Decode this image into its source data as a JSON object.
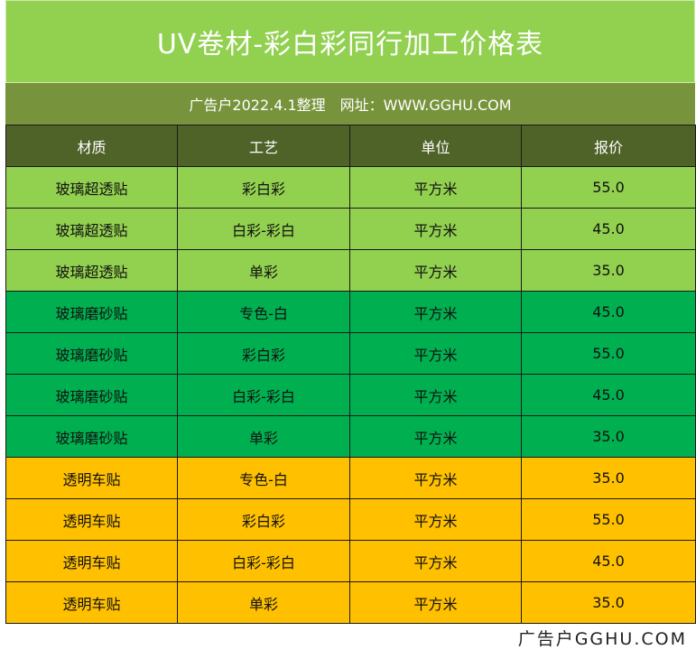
{
  "title": "UV卷材-彩白彩同行加工价格表",
  "subtitle": {
    "source": "广告户2022.4.1整理",
    "website": "网址：WWW.GGHU.COM"
  },
  "headers": [
    "材质",
    "工艺",
    "单位",
    "报价"
  ],
  "rows": [
    {
      "group": "g1",
      "material": "玻璃超透贴",
      "process": "彩白彩",
      "unit": "平方米",
      "price": "55.0"
    },
    {
      "group": "g1",
      "material": "玻璃超透贴",
      "process": "白彩-彩白",
      "unit": "平方米",
      "price": "45.0"
    },
    {
      "group": "g1",
      "material": "玻璃超透贴",
      "process": "单彩",
      "unit": "平方米",
      "price": "35.0"
    },
    {
      "group": "g2",
      "material": "玻璃磨砂贴",
      "process": "专色-白",
      "unit": "平方米",
      "price": "45.0"
    },
    {
      "group": "g2",
      "material": "玻璃磨砂贴",
      "process": "彩白彩",
      "unit": "平方米",
      "price": "55.0"
    },
    {
      "group": "g2",
      "material": "玻璃磨砂贴",
      "process": "白彩-彩白",
      "unit": "平方米",
      "price": "45.0"
    },
    {
      "group": "g2",
      "material": "玻璃磨砂贴",
      "process": "单彩",
      "unit": "平方米",
      "price": "35.0"
    },
    {
      "group": "g3",
      "material": "透明车贴",
      "process": "专色-白",
      "unit": "平方米",
      "price": "35.0"
    },
    {
      "group": "g3",
      "material": "透明车贴",
      "process": "彩白彩",
      "unit": "平方米",
      "price": "55.0"
    },
    {
      "group": "g3",
      "material": "透明车贴",
      "process": "白彩-彩白",
      "unit": "平方米",
      "price": "45.0"
    },
    {
      "group": "g3",
      "material": "透明车贴",
      "process": "单彩",
      "unit": "平方米",
      "price": "35.0"
    }
  ],
  "footer": "广告户GGHU.COM",
  "colors": {
    "title_bg": "#92d050",
    "subtitle_bg": "#77933c",
    "header_bg": "#4f6228",
    "group_glass_clear": "#92d050",
    "group_glass_frosted": "#00b050",
    "group_car_sticker": "#ffc000"
  }
}
